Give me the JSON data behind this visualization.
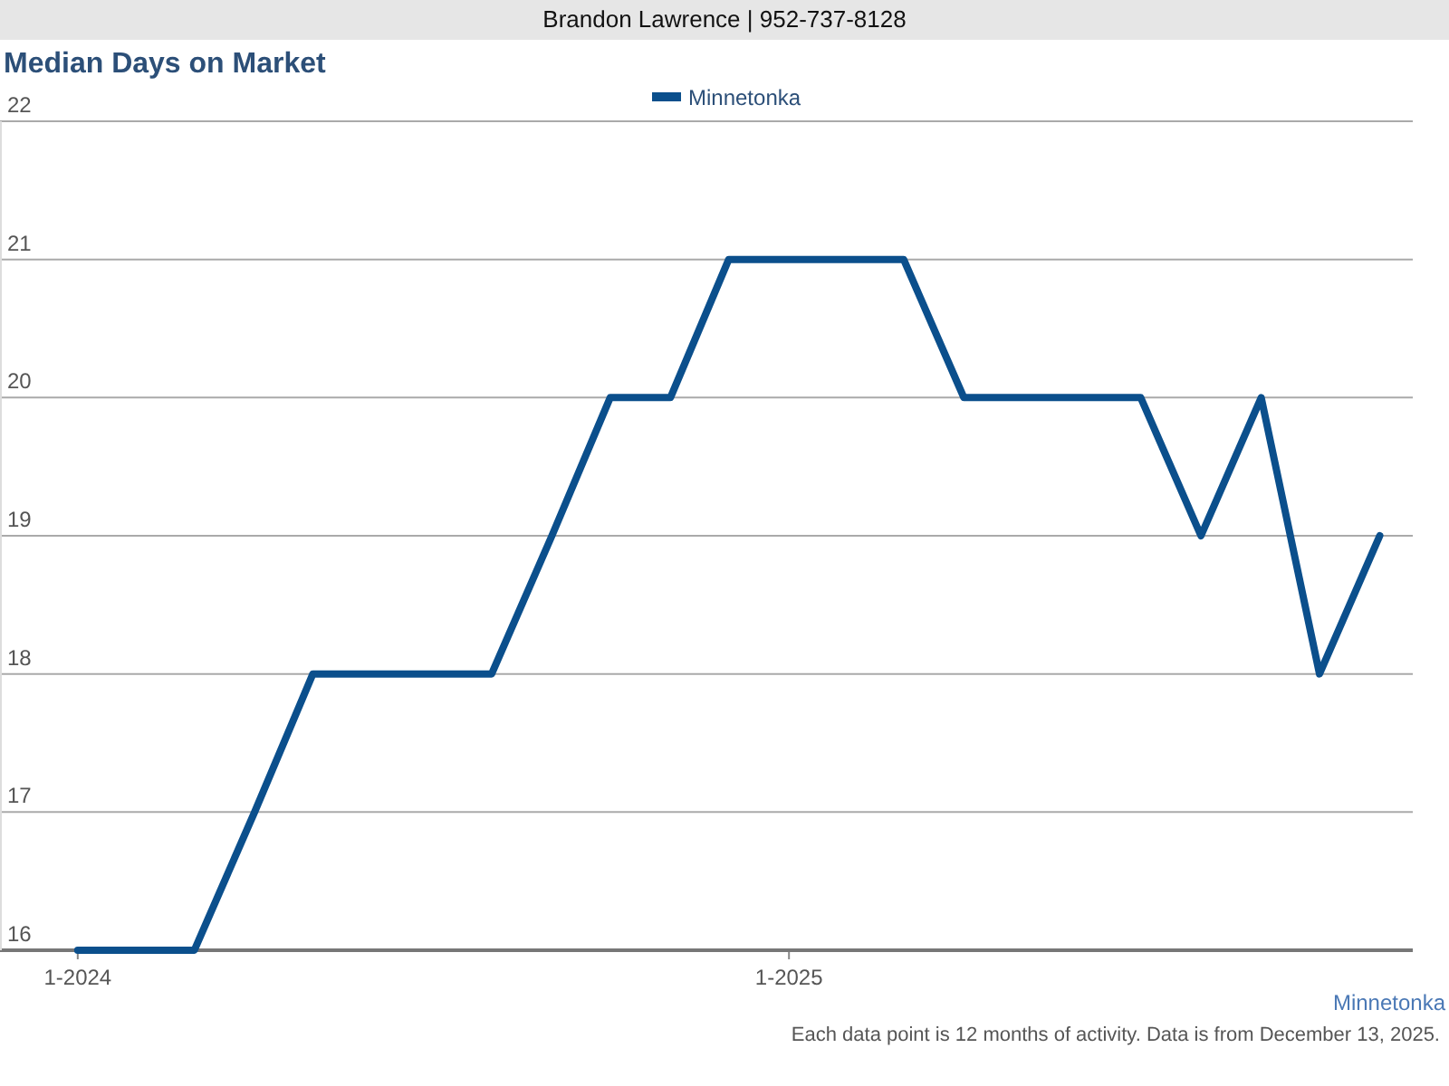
{
  "chart_data": {
    "type": "line",
    "title": "Median Days on Market",
    "annotations": [
      "Brandon Lawrence | 952-737-8128",
      "Minnetonka",
      "Each data point is 12 months of activity. Data is from December 13, 2025."
    ],
    "x": [
      "2024-01",
      "2024-02",
      "2024-03",
      "2024-04",
      "2024-05",
      "2024-06",
      "2024-07",
      "2024-08",
      "2024-09",
      "2024-10",
      "2024-11",
      "2024-12",
      "2025-01",
      "2025-02",
      "2025-03",
      "2025-04",
      "2025-05",
      "2025-06",
      "2025-07",
      "2025-08",
      "2025-09",
      "2025-10",
      "2025-11"
    ],
    "series": [
      {
        "name": "Minnetonka",
        "color": "#0b4f8c",
        "values": [
          16,
          16,
          16,
          17,
          18,
          18,
          18,
          18,
          19,
          20,
          20,
          21,
          21,
          21,
          21,
          20,
          20,
          20,
          20,
          19,
          20,
          18,
          19
        ]
      }
    ],
    "xlim": [
      "2023-11-22",
      "2025-11-18"
    ],
    "xticks": [
      {
        "value": "2024-01",
        "label": "1-2024"
      },
      {
        "value": "2025-01",
        "label": "1-2025"
      }
    ],
    "ylim": [
      16,
      22
    ],
    "yticks": [
      16,
      17,
      18,
      19,
      20,
      21,
      22
    ],
    "grid": "y",
    "legend": "top",
    "marker": "none",
    "line_style": "solid"
  }
}
